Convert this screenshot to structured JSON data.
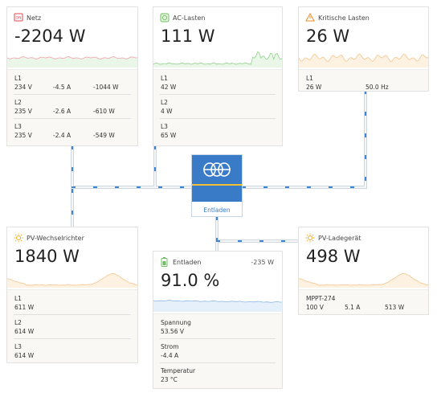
{
  "boxes": [
    {
      "title": "Netz",
      "value": "-2204 W",
      "rows": [
        {
          "label": "L1",
          "values": [
            "234 V",
            "-4.5 A",
            "-1044 W"
          ]
        },
        {
          "label": "L2",
          "values": [
            "235 V",
            "-2.6 A",
            "-610 W"
          ]
        },
        {
          "label": "L3",
          "values": [
            "235 V",
            "-2.4 A",
            "-549 W"
          ]
        }
      ]
    },
    {
      "title": "AC-Lasten",
      "value": "111 W",
      "rows": [
        {
          "label": "L1",
          "values": [
            "42 W"
          ]
        },
        {
          "label": "L2",
          "values": [
            "4 W"
          ]
        },
        {
          "label": "L3",
          "values": [
            "65 W"
          ]
        }
      ]
    },
    {
      "title": "Kritische Lasten",
      "value": "26 W",
      "rows": [
        {
          "label": "L1",
          "values": [
            "26 W",
            "50.0 Hz"
          ]
        }
      ]
    },
    {
      "title": "PV-Wechselrichter",
      "value": "1840 W",
      "rows": [
        {
          "label": "L1",
          "values": [
            "611 W"
          ]
        },
        {
          "label": "L2",
          "values": [
            "614 W"
          ]
        },
        {
          "label": "L3",
          "values": [
            "614 W"
          ]
        }
      ]
    },
    {
      "title": "Entladen",
      "title_right": "-235 W",
      "value": "91.0 %",
      "rows": [
        {
          "label": "Spannung",
          "values": [
            "53.56 V"
          ]
        },
        {
          "label": "Strom",
          "values": [
            "-4.4 A"
          ]
        },
        {
          "label": "Temperatur",
          "values": [
            "23 °C"
          ]
        }
      ]
    },
    {
      "title": "PV-Ladegerät",
      "value": "498 W",
      "rows": [
        {
          "label": "MPPT-274",
          "values": [
            "100 V",
            "5.1 A",
            "513 W"
          ]
        }
      ]
    }
  ],
  "inverter": {
    "state": "Entladen"
  }
}
